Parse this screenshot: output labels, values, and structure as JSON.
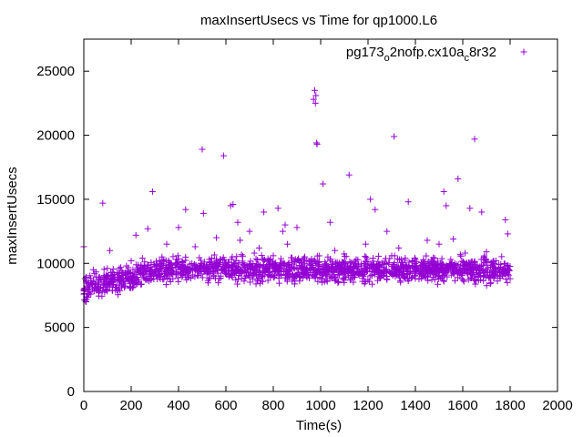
{
  "chart_data": {
    "type": "scatter",
    "title": "maxInsertUsecs vs Time for qp1000.L6",
    "xlabel": "Time(s)",
    "ylabel": "maxInsertUsecs",
    "xlim": [
      0,
      2000
    ],
    "ylim": [
      0,
      27500
    ],
    "x_ticks": [
      0,
      200,
      400,
      600,
      800,
      1000,
      1200,
      1400,
      1600,
      1800,
      2000
    ],
    "y_ticks": [
      0,
      5000,
      10000,
      15000,
      20000,
      25000
    ],
    "legend": {
      "position": "top-right",
      "base": "pg173",
      "sub1": "o",
      "mid": "2nofp.cx10a",
      "sub2": "c",
      "end": "8r32"
    },
    "marker": "+",
    "color": "#9400d3",
    "series": [
      {
        "name": "pg173_o2nofp.cx10a_c8r32",
        "x": [
          0,
          5,
          10,
          20,
          30,
          40,
          60,
          80,
          100,
          110,
          120,
          150,
          180,
          200,
          220,
          250,
          270,
          290,
          300,
          330,
          350,
          370,
          400,
          430,
          450,
          470,
          500,
          505,
          520,
          540,
          560,
          590,
          610,
          620,
          630,
          650,
          660,
          680,
          700,
          720,
          740,
          760,
          780,
          800,
          820,
          840,
          850,
          860,
          900,
          920,
          950,
          970,
          975,
          978,
          980,
          983,
          985,
          1000,
          1010,
          1040,
          1060,
          1080,
          1100,
          1120,
          1150,
          1170,
          1190,
          1210,
          1230,
          1250,
          1280,
          1300,
          1310,
          1330,
          1350,
          1370,
          1400,
          1430,
          1450,
          1480,
          1500,
          1520,
          1530,
          1540,
          1560,
          1580,
          1590,
          1610,
          1630,
          1650,
          1660,
          1680,
          1700,
          1720,
          1740,
          1760,
          1780,
          1790,
          1795,
          1800
        ],
        "y": [
          11300,
          8800,
          7000,
          8500,
          7600,
          9500,
          8200,
          14700,
          9000,
          11000,
          9300,
          9600,
          9800,
          10200,
          12200,
          9100,
          12700,
          15600,
          9800,
          10500,
          11500,
          9200,
          12800,
          14200,
          9500,
          11300,
          18900,
          13900,
          9800,
          10400,
          12000,
          18400,
          9900,
          14500,
          14600,
          13200,
          11800,
          9700,
          12500,
          10800,
          11200,
          14000,
          9300,
          10600,
          14300,
          12500,
          13000,
          11500,
          12800,
          9800,
          9100,
          22800,
          23500,
          22500,
          23100,
          19400,
          19300,
          9500,
          16200,
          13200,
          11000,
          9700,
          10000,
          16900,
          10300,
          9800,
          11500,
          15000,
          14200,
          9900,
          12500,
          10600,
          19900,
          11200,
          9900,
          14800,
          10300,
          9400,
          11800,
          10100,
          11500,
          15600,
          14500,
          9500,
          11900,
          16600,
          9800,
          10800,
          14300,
          19700,
          9500,
          14000,
          10900,
          9300,
          10200,
          9700,
          13400,
          12300,
          9500,
          8800
        ]
      }
    ]
  }
}
